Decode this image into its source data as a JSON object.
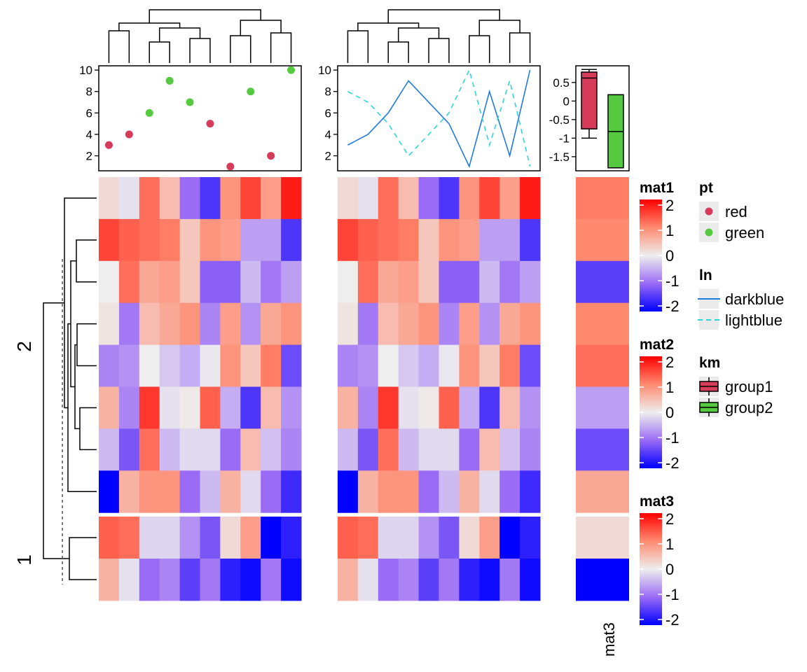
{
  "chart_data": {
    "type": "heatmap",
    "color_scale": {
      "min": -2,
      "mid": 0,
      "max": 2,
      "low_color": "#0000FF",
      "mid_color": "#EEEEEE",
      "high_color": "#FF0000"
    },
    "row_groups": [
      "2",
      "1"
    ],
    "row_group_sizes": [
      8,
      2
    ],
    "mat1": [
      [
        0.2,
        -0.1,
        1.2,
        0.5,
        -1.0,
        -1.5,
        0.9,
        1.5,
        0.8,
        1.8
      ],
      [
        1.5,
        1.3,
        1.2,
        1.1,
        0.4,
        0.9,
        0.8,
        -0.6,
        -0.6,
        -1.5
      ],
      [
        0.0,
        1.2,
        0.7,
        0.8,
        0.4,
        -1.1,
        -1.1,
        -0.4,
        -0.9,
        -0.6
      ],
      [
        0.1,
        -0.9,
        0.5,
        0.7,
        0.9,
        -0.8,
        0.8,
        -0.7,
        0.7,
        0.9
      ],
      [
        -0.8,
        -0.7,
        0.0,
        -0.3,
        -0.5,
        -0.05,
        0.9,
        0.4,
        1.1,
        -1.3
      ],
      [
        0.6,
        -0.8,
        1.6,
        -0.1,
        0.05,
        1.3,
        -0.5,
        -1.5,
        0.5,
        -0.7
      ],
      [
        -0.4,
        -1.2,
        1.2,
        -0.4,
        -0.15,
        -0.15,
        -1.0,
        0.5,
        -0.35,
        -0.8
      ],
      [
        -2.0,
        0.6,
        0.9,
        0.9,
        -1.0,
        -0.4,
        0.6,
        -0.15,
        -1.0,
        -1.6
      ],
      [
        1.3,
        1.2,
        -0.2,
        -0.2,
        -0.7,
        -1.2,
        0.2,
        0.8,
        -2.0,
        -1.7
      ],
      [
        0.6,
        -0.1,
        -1.0,
        -0.8,
        -1.4,
        -0.9,
        -1.7,
        -1.9,
        -0.9,
        -1.9
      ]
    ],
    "mat2": [
      [
        0.2,
        -0.1,
        1.2,
        0.5,
        -1.0,
        -1.5,
        0.9,
        1.5,
        0.8,
        1.8
      ],
      [
        1.5,
        1.3,
        1.2,
        1.1,
        0.4,
        0.9,
        0.8,
        -0.6,
        -0.6,
        -1.5
      ],
      [
        0.0,
        1.2,
        0.7,
        0.8,
        0.4,
        -1.1,
        -1.1,
        -0.4,
        -0.9,
        -0.6
      ],
      [
        0.1,
        -0.9,
        0.5,
        0.7,
        0.9,
        -0.8,
        0.8,
        -0.7,
        0.7,
        0.9
      ],
      [
        -0.8,
        -0.7,
        0.0,
        -0.3,
        -0.5,
        -0.05,
        0.9,
        0.4,
        1.1,
        -1.3
      ],
      [
        0.6,
        -0.8,
        1.6,
        -0.1,
        0.05,
        1.3,
        -0.5,
        -1.5,
        0.5,
        -0.7
      ],
      [
        -0.4,
        -1.2,
        1.2,
        -0.4,
        -0.15,
        -0.15,
        -1.0,
        0.5,
        -0.35,
        -0.8
      ],
      [
        -2.0,
        0.6,
        0.9,
        0.9,
        -1.0,
        -0.4,
        0.6,
        -0.15,
        -1.0,
        -1.6
      ],
      [
        1.3,
        1.2,
        -0.2,
        -0.2,
        -0.7,
        -1.2,
        0.2,
        0.8,
        -2.0,
        -1.7
      ],
      [
        0.6,
        -0.1,
        -1.0,
        -0.8,
        -1.4,
        -0.9,
        -1.7,
        -1.9,
        -0.9,
        -1.9
      ]
    ],
    "mat3": [
      1.1,
      1.0,
      -1.4,
      1.0,
      1.2,
      -0.6,
      -1.3,
      0.7,
      0.2,
      -2.0
    ],
    "mat3_label": "mat3",
    "scatter": {
      "y": [
        3,
        4,
        6,
        9,
        7,
        5,
        1,
        8,
        2,
        10
      ],
      "groups": [
        "red",
        "red",
        "green",
        "green",
        "green",
        "red",
        "red",
        "green",
        "red",
        "green"
      ],
      "yticks": [
        2,
        4,
        6,
        8,
        10
      ],
      "ylim": [
        0.6,
        10.4
      ]
    },
    "lines": {
      "darkblue": [
        3,
        4,
        6,
        9,
        7,
        5,
        1,
        8,
        2,
        10
      ],
      "lightblue": [
        8,
        7,
        5,
        2,
        4,
        6,
        10,
        3,
        9,
        1
      ],
      "yticks": [
        2,
        4,
        6,
        8,
        10
      ],
      "ylim": [
        0.6,
        10.4
      ]
    },
    "boxplot": {
      "groups": [
        {
          "name": "group1",
          "whisker_high": 0.85,
          "q3": 0.78,
          "median": 0.62,
          "q1": -0.75,
          "whisker_low": -1.0
        },
        {
          "name": "group2",
          "whisker_high": 0.17,
          "q3": 0.17,
          "median": -0.82,
          "q1": -1.8,
          "whisker_low": -1.8
        }
      ],
      "yticks": [
        "0.5",
        "0",
        "-0.5",
        "-1",
        "-1.5"
      ],
      "ylim": [
        -1.88,
        0.95
      ]
    }
  },
  "legends": {
    "mat1": {
      "title": "mat1",
      "ticks": [
        "2",
        "1",
        "0",
        "-1",
        "-2"
      ]
    },
    "mat2": {
      "title": "mat2",
      "ticks": [
        "2",
        "1",
        "0",
        "-1",
        "-2"
      ]
    },
    "mat3": {
      "title": "mat3",
      "ticks": [
        "2",
        "1",
        "0",
        "-1",
        "-2"
      ]
    },
    "pt": {
      "title": "pt",
      "items": [
        "red",
        "green"
      ]
    },
    "ln": {
      "title": "ln",
      "items": [
        "darkblue",
        "lightblue"
      ]
    },
    "km": {
      "title": "km",
      "items": [
        "group1",
        "group2"
      ]
    }
  },
  "colors": {
    "red": "#D63C5A",
    "green": "#55C93F",
    "darkblue": "#1F7BE0",
    "lightblue": "#2ED6D6"
  }
}
